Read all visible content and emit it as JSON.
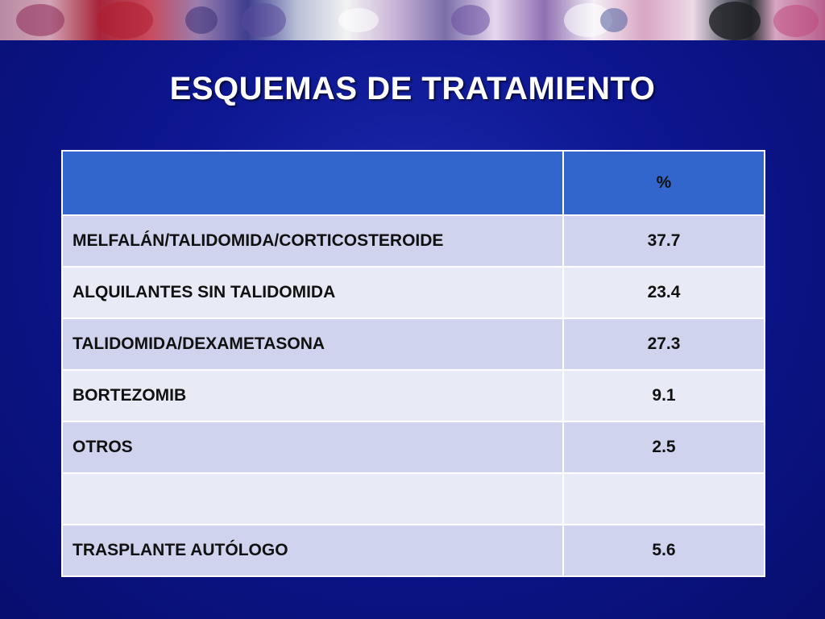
{
  "slide": {
    "title": "ESQUEMAS DE TRATAMIENTO"
  },
  "table": {
    "header": {
      "label": "",
      "value": "%"
    },
    "rows": [
      {
        "label": "MELFALÁN/TALIDOMIDA/CORTICOSTEROIDE",
        "value": "37.7"
      },
      {
        "label": "ALQUILANTES SIN TALIDOMIDA",
        "value": "23.4"
      },
      {
        "label": "TALIDOMIDA/DEXAMETASONA",
        "value": "27.3"
      },
      {
        "label": "BORTEZOMIB",
        "value": "9.1"
      },
      {
        "label": "OTROS",
        "value": "2.5"
      },
      {
        "label": "",
        "value": ""
      },
      {
        "label": "TRASPLANTE AUTÓLOGO",
        "value": "5.6"
      }
    ]
  },
  "colors": {
    "background": "#0d1690",
    "header_fill": "#3366cc",
    "row_dark": "#cfd3ed",
    "row_light": "#e8eaf5"
  }
}
